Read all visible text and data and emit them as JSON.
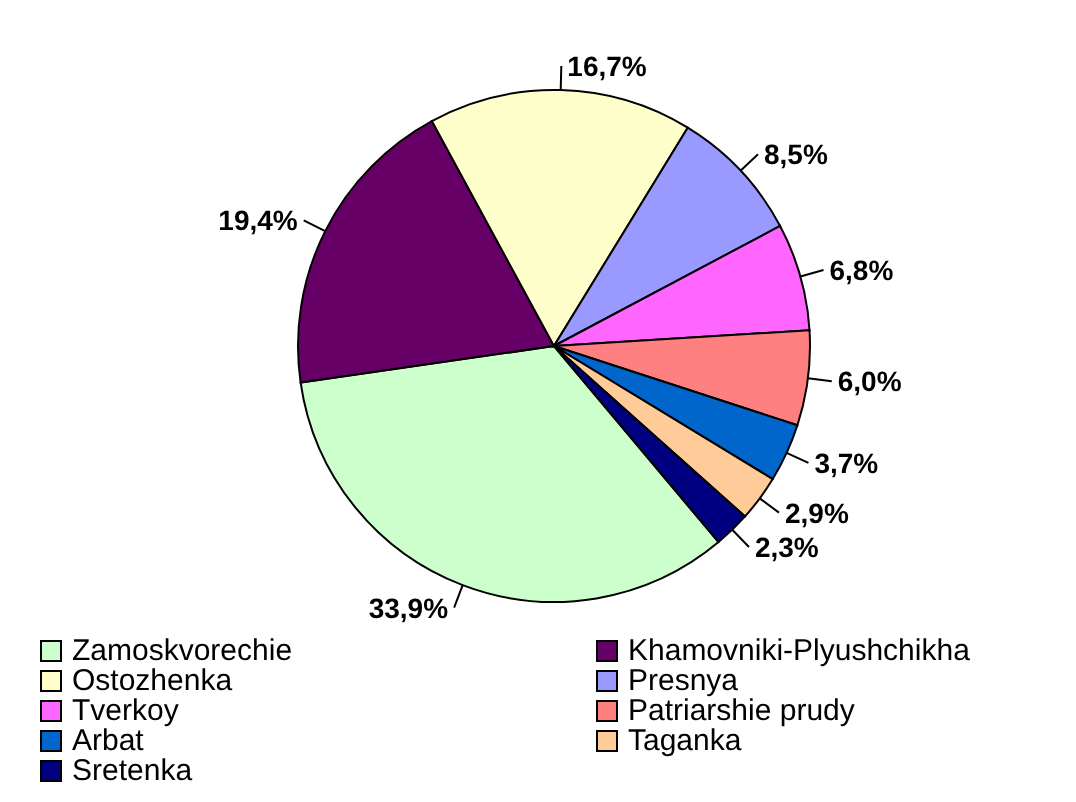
{
  "chart_data": {
    "type": "pie",
    "categories": [
      "Zamoskvorechie",
      "Khamovniki-Plyushchikha",
      "Ostozhenka",
      "Presnya",
      "Tverkoy",
      "Patriarshie prudy",
      "Arbat",
      "Taganka",
      "Sretenka"
    ],
    "values": [
      33.9,
      19.4,
      16.7,
      8.5,
      6.8,
      6.0,
      3.7,
      2.9,
      2.3
    ],
    "value_labels": [
      "33,9%",
      "19,4%",
      "16,7%",
      "8,5%",
      "6,8%",
      "6,0%",
      "3,7%",
      "2,9%",
      "2,3%"
    ],
    "colors": [
      "#ccffcc",
      "#660066",
      "#ffffcc",
      "#9999ff",
      "#ff66ff",
      "#ff8080",
      "#0066cc",
      "#ffcc99",
      "#000080"
    ],
    "legend": "bottom"
  }
}
